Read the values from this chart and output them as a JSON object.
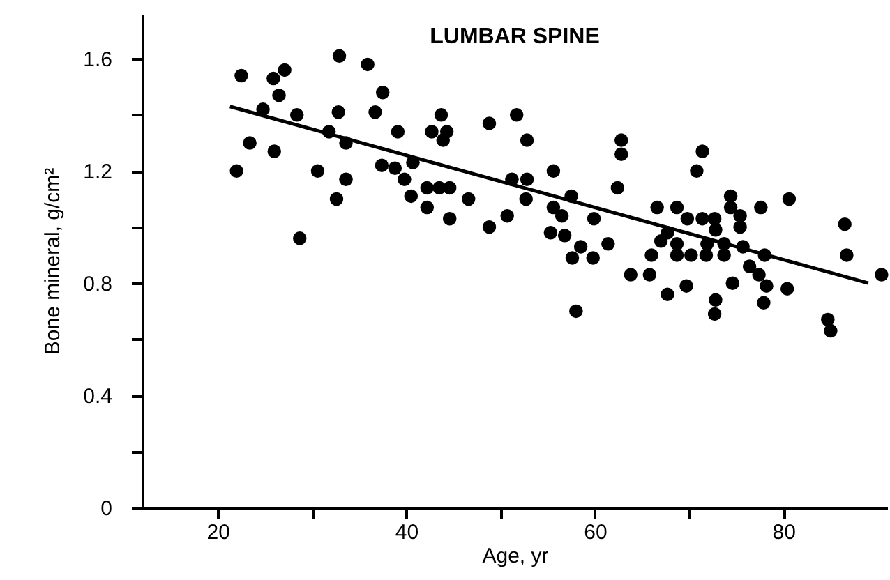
{
  "chart_data": {
    "type": "scatter",
    "title": "LUMBAR SPINE",
    "xlabel": "Age, yr",
    "ylabel": "Bone mineral, g/cm²",
    "xlim": [
      12,
      91
    ],
    "ylim": [
      0,
      1.76
    ],
    "xticks": [
      20,
      {
        "value": 30,
        "label": null
      },
      40,
      {
        "value": 50,
        "label": null
      },
      60,
      {
        "value": 70,
        "label": null
      },
      80
    ],
    "yticks": [
      0,
      {
        "value": 0.2,
        "label": null
      },
      0.4,
      {
        "value": 0.6,
        "label": null
      },
      0.8,
      {
        "value": 1.0,
        "label": null
      },
      1.2,
      {
        "value": 1.4,
        "label": null
      },
      1.6
    ],
    "grid": false,
    "series": [
      {
        "type": "scatter",
        "color": "#000000",
        "marker": "circle",
        "x": [
          22.5,
          25.9,
          27.1,
          26.5,
          32.9,
          35.9,
          37.5,
          24.8,
          28.4,
          32.8,
          36.7,
          31.8,
          33.6,
          39.1,
          23.4,
          26.0,
          22.0,
          30.6,
          33.6,
          32.6,
          37.4,
          38.8,
          39.8,
          40.5,
          40.7,
          28.7,
          43.7,
          42.7,
          44.3,
          43.9,
          48.8,
          51.7,
          52.8,
          62.8,
          62.8,
          42.2,
          43.5,
          44.6,
          42.2,
          44.6,
          46.6,
          48.8,
          50.7,
          51.2,
          52.8,
          52.7,
          55.6,
          57.5,
          55.6,
          56.5,
          55.3,
          56.8,
          59.9,
          58.5,
          57.6,
          59.8,
          61.4,
          62.4,
          58.0,
          63.8,
          71.4,
          70.8,
          66.6,
          68.7,
          69.8,
          71.4,
          72.7,
          72.8,
          74.4,
          74.4,
          75.4,
          75.4,
          77.6,
          80.6,
          67.7,
          67.0,
          66.0,
          68.7,
          68.7,
          70.2,
          71.9,
          71.8,
          73.7,
          73.7,
          75.7,
          78.0,
          76.4,
          77.4,
          78.2,
          80.4,
          77.9,
          74.6,
          69.7,
          67.7,
          65.8,
          72.8,
          72.7,
          86.5,
          86.7,
          90.4,
          84.7,
          85.0
        ],
        "values": [
          1.54,
          1.53,
          1.56,
          1.47,
          1.61,
          1.58,
          1.48,
          1.42,
          1.4,
          1.41,
          1.41,
          1.34,
          1.3,
          1.34,
          1.3,
          1.27,
          1.2,
          1.2,
          1.17,
          1.1,
          1.22,
          1.21,
          1.17,
          1.11,
          1.23,
          0.96,
          1.4,
          1.34,
          1.34,
          1.31,
          1.37,
          1.4,
          1.31,
          1.31,
          1.26,
          1.14,
          1.14,
          1.14,
          1.07,
          1.03,
          1.1,
          1.0,
          1.04,
          1.17,
          1.17,
          1.1,
          1.2,
          1.11,
          1.07,
          1.04,
          0.98,
          0.97,
          1.03,
          0.93,
          0.89,
          0.89,
          0.94,
          1.14,
          0.7,
          0.83,
          1.27,
          1.2,
          1.07,
          1.07,
          1.03,
          1.03,
          1.03,
          0.99,
          1.11,
          1.07,
          1.04,
          1.0,
          1.07,
          1.1,
          0.98,
          0.95,
          0.9,
          0.94,
          0.9,
          0.9,
          0.94,
          0.9,
          0.94,
          0.9,
          0.93,
          0.9,
          0.86,
          0.83,
          0.79,
          0.78,
          0.73,
          0.8,
          0.79,
          0.76,
          0.83,
          0.74,
          0.69,
          1.01,
          0.9,
          0.83,
          0.67,
          0.63
        ]
      },
      {
        "type": "line",
        "color": "#000000",
        "line_style": "solid",
        "x": [
          21.3,
          89.0
        ],
        "values": [
          1.43,
          0.8
        ]
      }
    ]
  }
}
